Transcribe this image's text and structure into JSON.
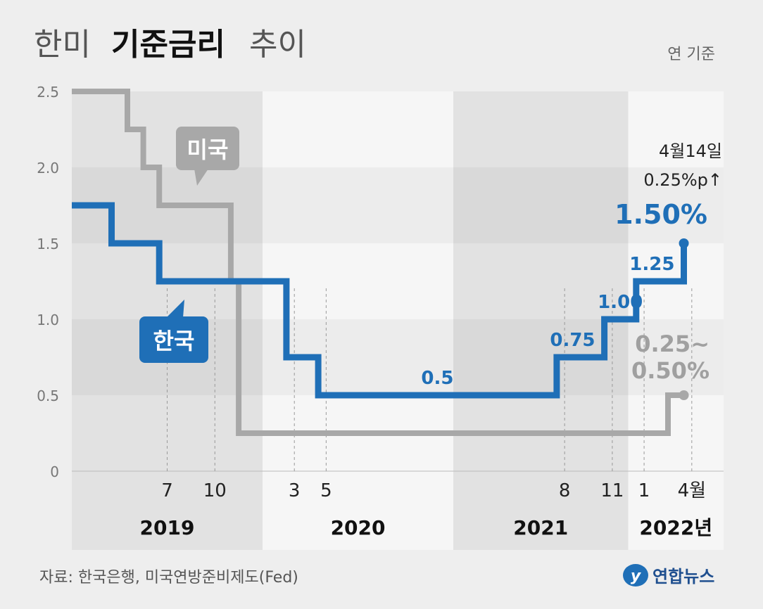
{
  "title": {
    "prefix": "한미",
    "bold": "기준금리",
    "suffix": "추이"
  },
  "unit_note": "연 기준",
  "source": "자료: 한국은행, 미국연방준비제도(Fed)",
  "brand": "연합뉴스",
  "colors": {
    "korea": "#1f6fb7",
    "usa": "#a8a8a8",
    "dark_band": "#e2e2e2",
    "light_band": "#f6f6f6",
    "grid_alt": "#e9e9e9"
  },
  "chart_data": {
    "type": "line",
    "step": true,
    "ylim": [
      0,
      2.5
    ],
    "yticks": [
      "0",
      "0.5",
      "1.0",
      "1.5",
      "2.0",
      "2.5"
    ],
    "ytick_values": [
      0,
      0.5,
      1.0,
      1.5,
      2.0,
      2.5
    ],
    "xlim": [
      0,
      41
    ],
    "month_ticks": [
      {
        "x": 6,
        "label": "7"
      },
      {
        "x": 9,
        "label": "10"
      },
      {
        "x": 14,
        "label": "3"
      },
      {
        "x": 16,
        "label": "5"
      },
      {
        "x": 31,
        "label": "8"
      },
      {
        "x": 34,
        "label": "11"
      },
      {
        "x": 36,
        "label": "1"
      },
      {
        "x": 39,
        "label": "4월"
      }
    ],
    "years": [
      {
        "label": "2019",
        "from": 0,
        "to": 12,
        "shade": "dark"
      },
      {
        "label": "2020",
        "from": 12,
        "to": 24,
        "shade": "light"
      },
      {
        "label": "2021",
        "from": 24,
        "to": 35,
        "shade": "dark"
      },
      {
        "label": "2022년",
        "from": 35,
        "to": 41,
        "shade": "light"
      }
    ],
    "series": [
      {
        "name": "한국",
        "color": "#1f6fb7",
        "points": [
          [
            0,
            1.75
          ],
          [
            2.5,
            1.75
          ],
          [
            2.5,
            1.5
          ],
          [
            5.5,
            1.5
          ],
          [
            5.5,
            1.25
          ],
          [
            10.5,
            1.25
          ],
          [
            13.5,
            1.25
          ],
          [
            13.5,
            0.75
          ],
          [
            15.5,
            0.75
          ],
          [
            15.5,
            0.5
          ],
          [
            30.5,
            0.5
          ],
          [
            30.5,
            0.75
          ],
          [
            33.5,
            0.75
          ],
          [
            33.5,
            1.0
          ],
          [
            35.5,
            1.0
          ],
          [
            35.5,
            1.25
          ],
          [
            38.5,
            1.25
          ],
          [
            38.5,
            1.5
          ]
        ],
        "labels": [
          {
            "x": 23,
            "y": 0.5,
            "text": "0.5"
          },
          {
            "x": 31.5,
            "y": 0.75,
            "text": "0.75"
          },
          {
            "x": 34.5,
            "y": 1.0,
            "text": "1.00"
          },
          {
            "x": 36.5,
            "y": 1.25,
            "text": "1.25"
          }
        ],
        "end_label": "1.50%",
        "end_note_line1": "4월14일",
        "end_note_line2": "0.25%p↑"
      },
      {
        "name": "미국",
        "color": "#a8a8a8",
        "points": [
          [
            0,
            2.5
          ],
          [
            3.5,
            2.5
          ],
          [
            3.5,
            2.25
          ],
          [
            4.5,
            2.25
          ],
          [
            4.5,
            2.0
          ],
          [
            5.5,
            2.0
          ],
          [
            5.5,
            1.75
          ],
          [
            9.5,
            1.75
          ],
          [
            9.5,
            1.75
          ],
          [
            9.5,
            1.25
          ],
          [
            9.7,
            1.25
          ],
          [
            10.0,
            1.75
          ],
          [
            10.0,
            1.75
          ],
          [
            10.0,
            1.25
          ],
          [
            10.0,
            1.25
          ],
          [
            10.0,
            0.25
          ],
          [
            37.5,
            0.25
          ],
          [
            37.5,
            0.5
          ],
          [
            38.5,
            0.5
          ]
        ],
        "end_label_line1": "0.25~",
        "end_label_line2": "0.50%"
      }
    ]
  }
}
